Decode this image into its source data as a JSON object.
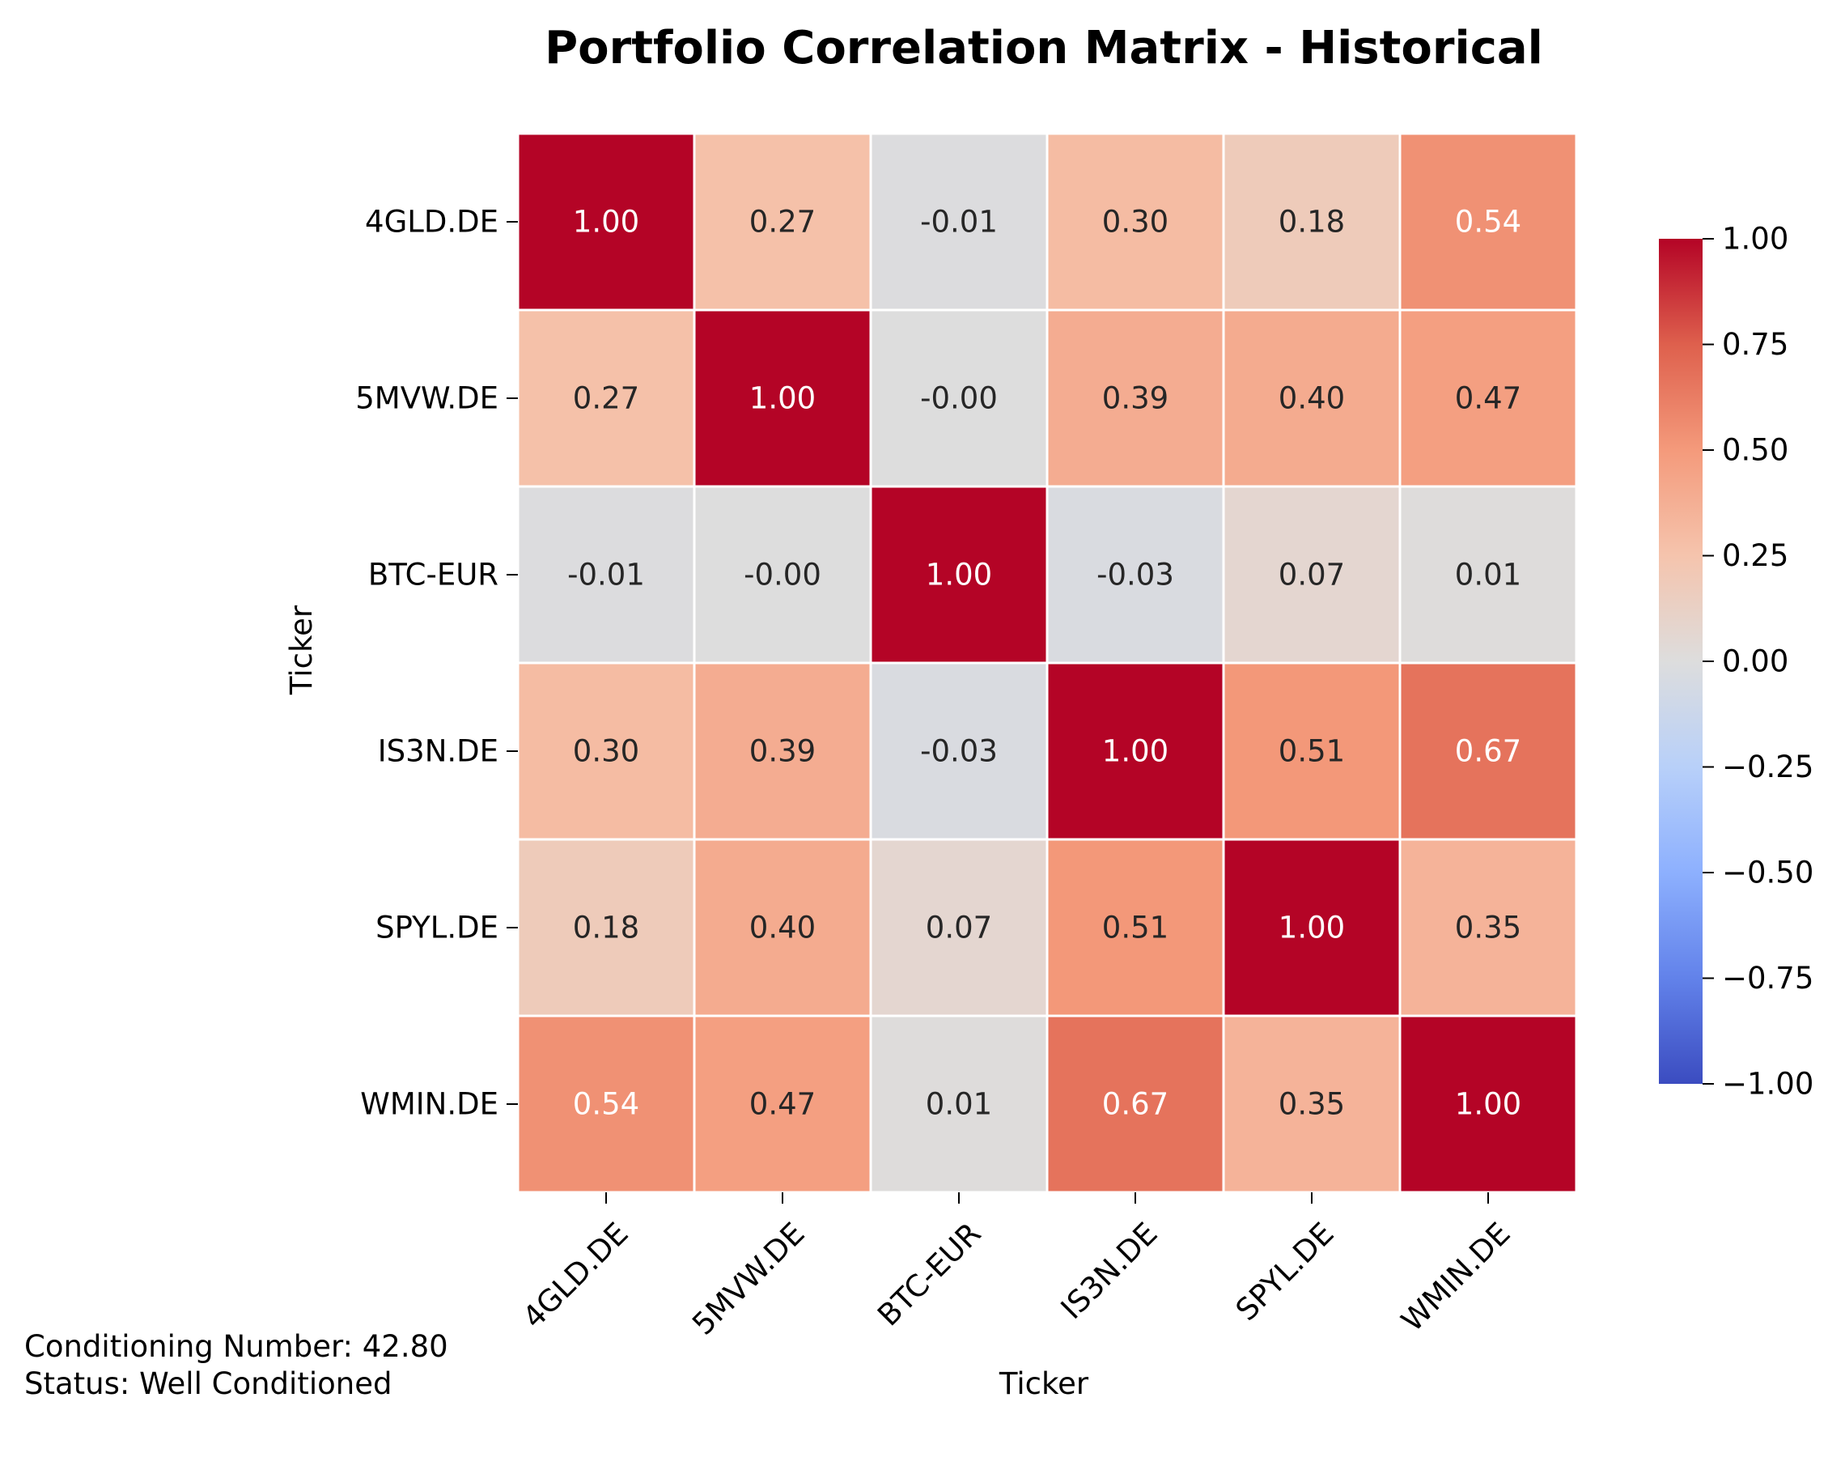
{
  "chart_data": {
    "type": "heatmap",
    "title": "Portfolio Correlation Matrix - Historical",
    "xlabel": "Ticker",
    "ylabel": "Ticker",
    "x_categories": [
      "4GLD.DE",
      "5MVW.DE",
      "BTC-EUR",
      "IS3N.DE",
      "SPYL.DE",
      "WMIN.DE"
    ],
    "y_categories": [
      "4GLD.DE",
      "5MVW.DE",
      "BTC-EUR",
      "IS3N.DE",
      "SPYL.DE",
      "WMIN.DE"
    ],
    "values": [
      [
        1.0,
        0.27,
        -0.01,
        0.3,
        0.18,
        0.54
      ],
      [
        0.27,
        1.0,
        -0.0,
        0.39,
        0.4,
        0.47
      ],
      [
        -0.01,
        -0.0,
        1.0,
        -0.03,
        0.07,
        0.01
      ],
      [
        0.3,
        0.39,
        -0.03,
        1.0,
        0.51,
        0.67
      ],
      [
        0.18,
        0.4,
        0.07,
        0.51,
        1.0,
        0.35
      ],
      [
        0.54,
        0.47,
        0.01,
        0.67,
        0.35,
        1.0
      ]
    ],
    "cell_labels": [
      [
        "1.00",
        "0.27",
        "-0.01",
        "0.30",
        "0.18",
        "0.54"
      ],
      [
        "0.27",
        "1.00",
        "-0.00",
        "0.39",
        "0.40",
        "0.47"
      ],
      [
        "-0.01",
        "-0.00",
        "1.00",
        "-0.03",
        "0.07",
        "0.01"
      ],
      [
        "0.30",
        "0.39",
        "-0.03",
        "1.00",
        "0.51",
        "0.67"
      ],
      [
        "0.18",
        "0.40",
        "0.07",
        "0.51",
        "1.00",
        "0.35"
      ],
      [
        "0.54",
        "0.47",
        "0.01",
        "0.67",
        "0.35",
        "1.00"
      ]
    ],
    "colormap": "coolwarm",
    "vmin": -1.0,
    "vmax": 1.0,
    "colorbar_ticks": [
      1.0,
      0.75,
      0.5,
      0.25,
      0.0,
      -0.25,
      -0.5,
      -0.75,
      -1.0
    ],
    "colorbar_tick_labels": [
      "1.00",
      "0.75",
      "0.50",
      "0.25",
      "0.00",
      "−0.25",
      "−0.50",
      "−0.75",
      "−1.00"
    ],
    "grid": false,
    "colorbar_placement": "right"
  },
  "annotations": {
    "conditioning_number": "Conditioning Number: 42.80",
    "status": "Status: Well Conditioned"
  },
  "colors": {
    "cell_border": "#ffffff",
    "text_dark": "#262626",
    "text_light": "#ffffff"
  }
}
